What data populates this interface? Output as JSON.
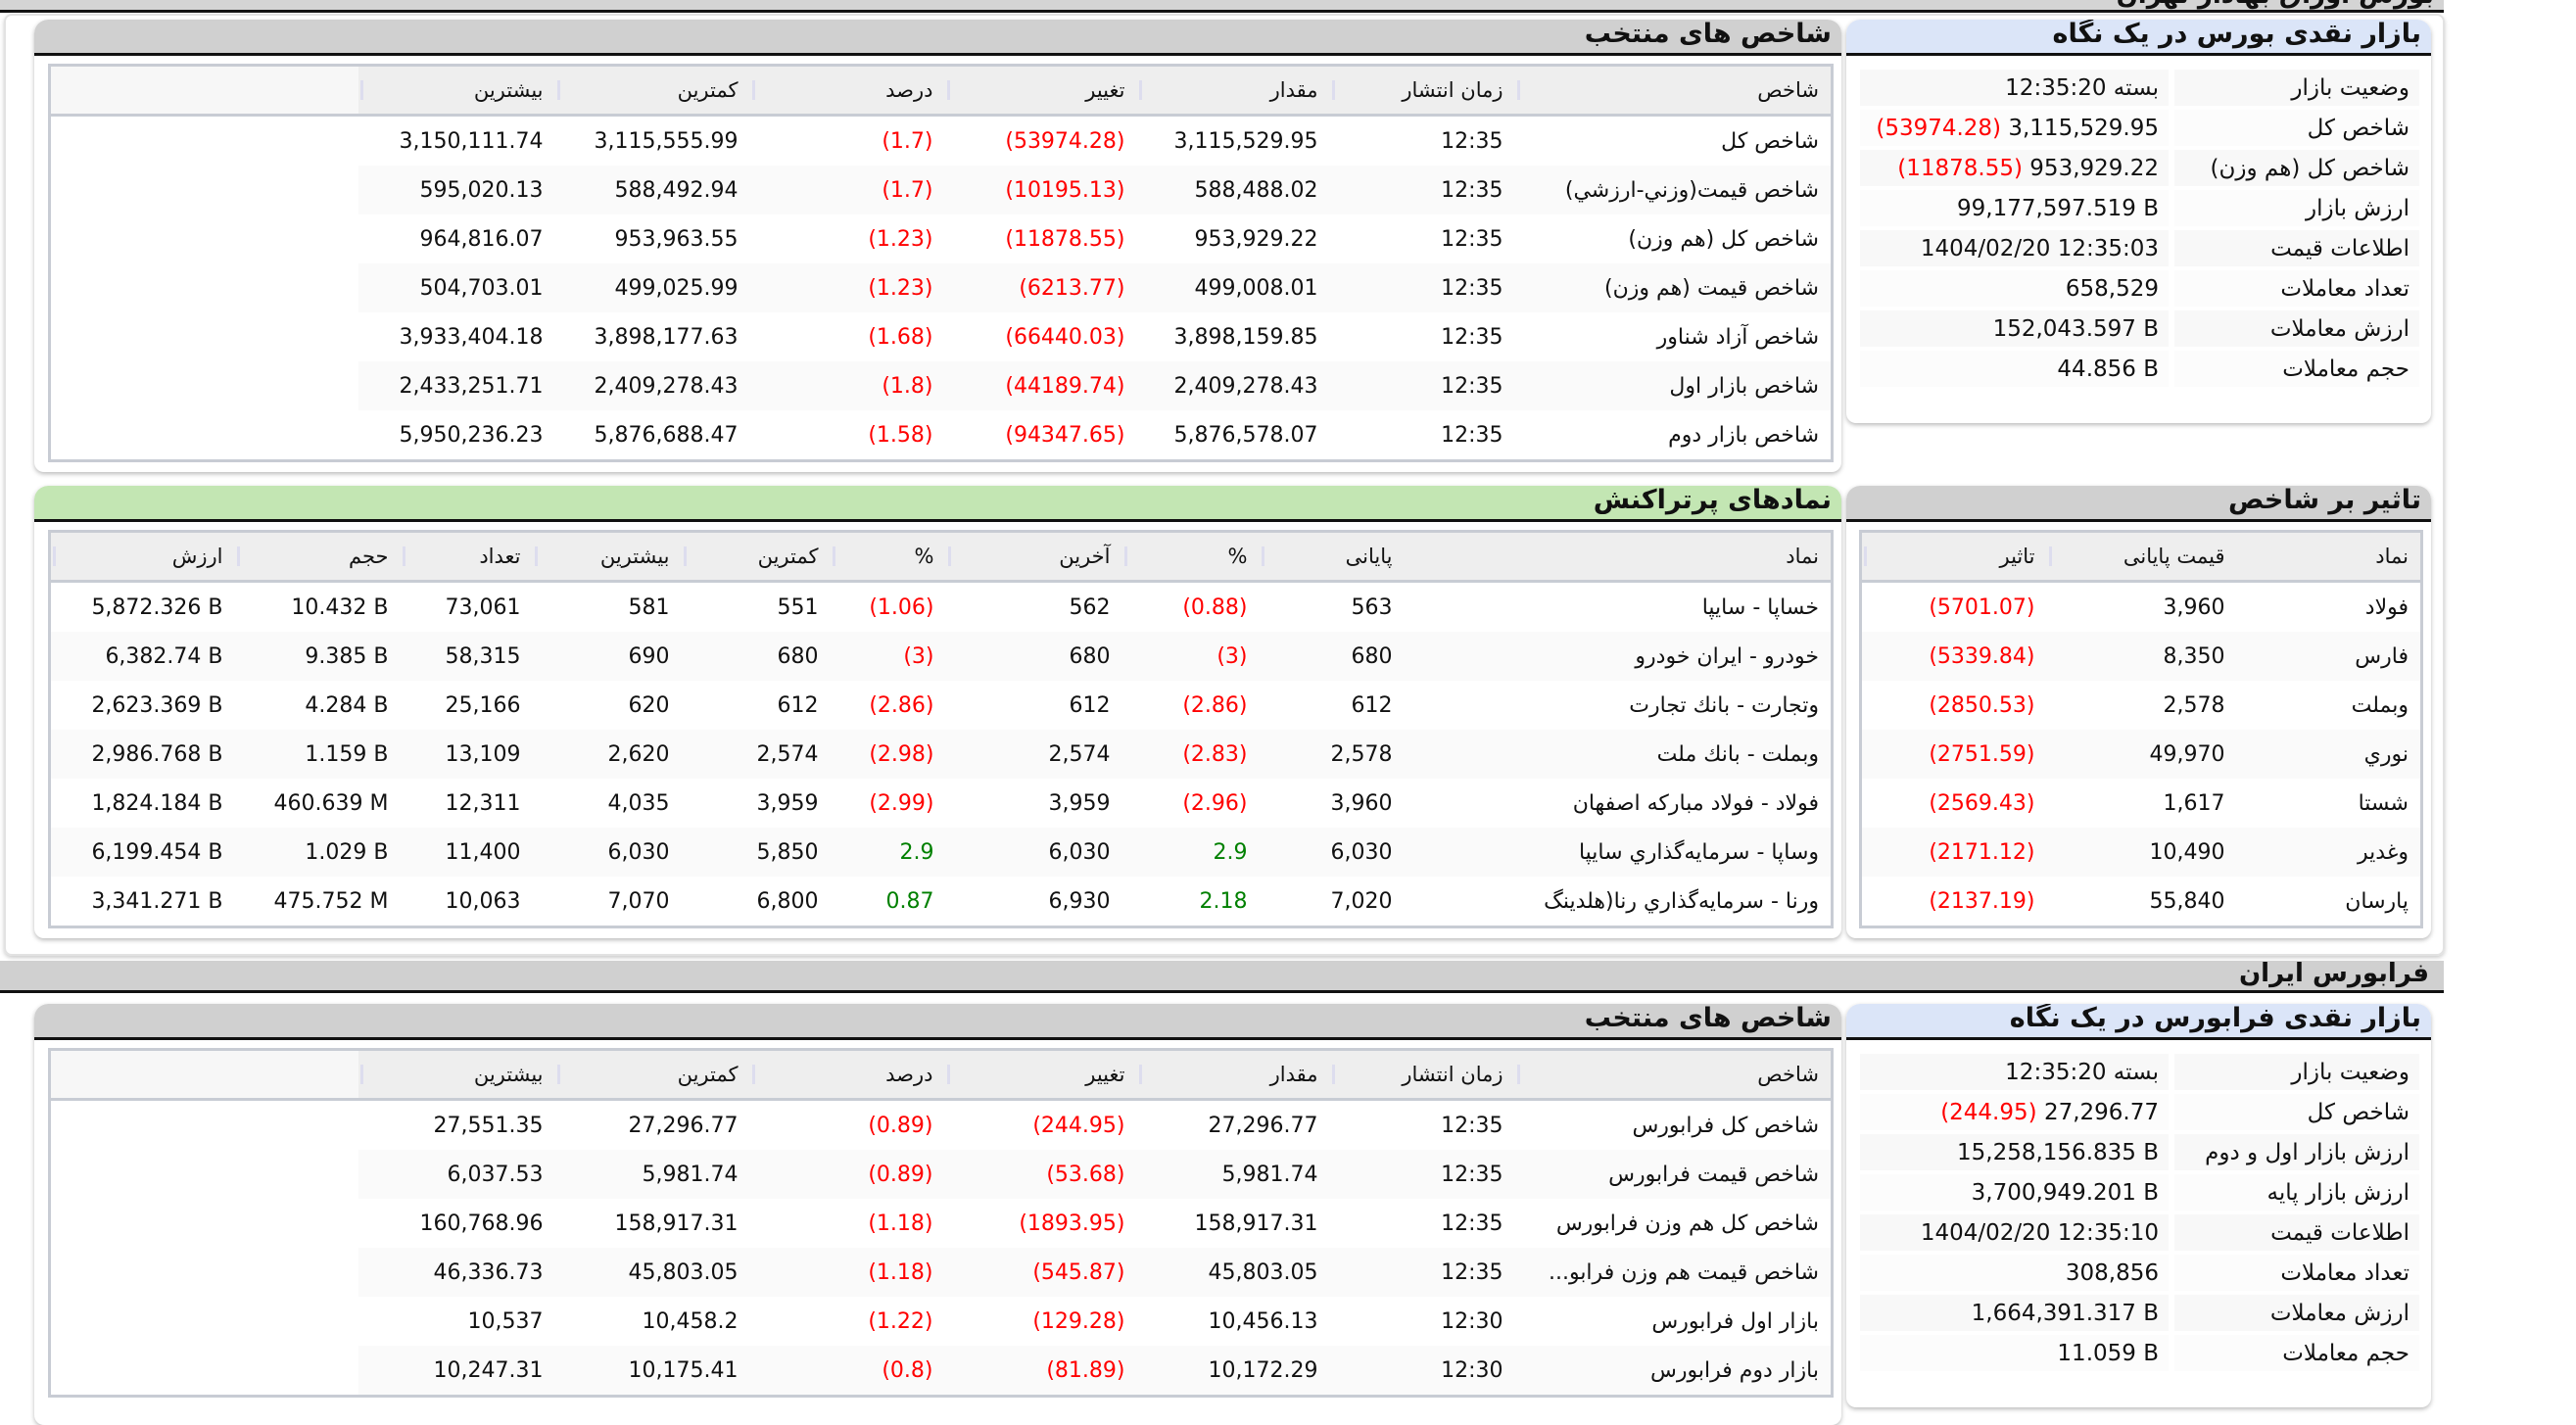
{
  "page_title": "بورس اوراق بهادار تهران",
  "colors": {
    "negative": "#ff0000",
    "positive": "#008000",
    "blue_header": "#dbe5f8",
    "green_header": "#c3e6b3",
    "gray_header": "#d0d0d0"
  },
  "tse_glance": {
    "title": "بازار نقدی بورس در یک نگاه",
    "rows": [
      {
        "label": "وضعیت بازار",
        "value": "بسته 12:35:20"
      },
      {
        "label": "شاخص کل",
        "value": "3,115,529.95",
        "change": "(53974.28)"
      },
      {
        "label": "شاخص کل (هم وزن)",
        "value": "953,929.22",
        "change": "(11878.55)"
      },
      {
        "label": "ارزش بازار",
        "value": "99,177,597.519 B"
      },
      {
        "label": "اطلاعات قیمت",
        "value": "1404/02/20 12:35:03"
      },
      {
        "label": "تعداد معاملات",
        "value": "658,529"
      },
      {
        "label": "ارزش معاملات",
        "value": "152,043.597 B"
      },
      {
        "label": "حجم معاملات",
        "value": "44.856 B"
      }
    ]
  },
  "tse_indices": {
    "title": "شاخص های منتخب",
    "columns": [
      "شاخص",
      "زمان انتشار",
      "مقدار",
      "تغییر",
      "درصد",
      "کمترین",
      "بیشترین"
    ],
    "rows": [
      [
        "شاخص کل",
        "12:35",
        "3,115,529.95",
        "(53974.28)",
        "(1.7)",
        "3,115,555.99",
        "3,150,111.74"
      ],
      [
        "شاخص قيمت(وزني-ارزشي)",
        "12:35",
        "588,488.02",
        "(10195.13)",
        "(1.7)",
        "588,492.94",
        "595,020.13"
      ],
      [
        "شاخص کل (هم وزن)",
        "12:35",
        "953,929.22",
        "(11878.55)",
        "(1.23)",
        "953,963.55",
        "964,816.07"
      ],
      [
        "شاخص قیمت (هم وزن)",
        "12:35",
        "499,008.01",
        "(6213.77)",
        "(1.23)",
        "499,025.99",
        "504,703.01"
      ],
      [
        "شاخص آزاد شناور",
        "12:35",
        "3,898,159.85",
        "(66440.03)",
        "(1.68)",
        "3,898,177.63",
        "3,933,404.18"
      ],
      [
        "شاخص بازار اول",
        "12:35",
        "2,409,278.43",
        "(44189.74)",
        "(1.8)",
        "2,409,278.43",
        "2,433,251.71"
      ],
      [
        "شاخص بازار دوم",
        "12:35",
        "5,876,578.07",
        "(94347.65)",
        "(1.58)",
        "5,876,688.47",
        "5,950,236.23"
      ]
    ]
  },
  "impact": {
    "title": "تاثیر بر شاخص",
    "columns": [
      "نماد",
      "قیمت پایانی",
      "تاثیر"
    ],
    "rows": [
      [
        "فولاد",
        "3,960",
        "(5701.07)"
      ],
      [
        "فارس",
        "8,350",
        "(5339.84)"
      ],
      [
        "وبملت",
        "2,578",
        "(2850.53)"
      ],
      [
        "نوري",
        "49,970",
        "(2751.59)"
      ],
      [
        "شستا",
        "1,617",
        "(2569.43)"
      ],
      [
        "وغدير",
        "10,490",
        "(2171.12)"
      ],
      [
        "پارسان",
        "55,840",
        "(2137.19)"
      ]
    ]
  },
  "busiest": {
    "title": "نمادهای پرتراکنش",
    "columns": [
      "نماد",
      "پایانی",
      "%",
      "آخرین",
      "%",
      "کمترین",
      "بیشترین",
      "تعداد",
      "حجم",
      "ارزش"
    ],
    "rows": [
      [
        "خساپا - سايپا",
        "563",
        "(0.88)",
        "562",
        "(1.06)",
        "551",
        "581",
        "73,061",
        "10.432 B",
        "5,872.326 B"
      ],
      [
        "خودرو - ايران‌ خودرو",
        "680",
        "(3)",
        "680",
        "(3)",
        "680",
        "690",
        "58,315",
        "9.385 B",
        "6,382.74 B"
      ],
      [
        "وتجارت - بانك تجارت",
        "612",
        "(2.86)",
        "612",
        "(2.86)",
        "612",
        "620",
        "25,166",
        "4.284 B",
        "2,623.369 B"
      ],
      [
        "وبملت - بانك ملت",
        "2,578",
        "(2.83)",
        "2,574",
        "(2.98)",
        "2,574",
        "2,620",
        "13,109",
        "1.159 B",
        "2,986.768 B"
      ],
      [
        "فولاد - فولاد مباركه اصفهان",
        "3,960",
        "(2.96)",
        "3,959",
        "(2.99)",
        "3,959",
        "4,035",
        "12,311",
        "460.639 M",
        "1,824.184 B"
      ],
      [
        "وساپا - سرمايه‌گذاري سايپا",
        "6,030",
        "2.9",
        "6,030",
        "2.9",
        "5,850",
        "6,030",
        "11,400",
        "1.029 B",
        "6,199.454 B"
      ],
      [
        "ورنا - سرمايه‌گذاري رنا(هلدينگ",
        "7,020",
        "2.18",
        "6,930",
        "0.87",
        "6,800",
        "7,070",
        "10,063",
        "475.752 M",
        "3,341.271 B"
      ]
    ]
  },
  "ifb_section_title": "فرابورس ایران",
  "ifb_glance": {
    "title": "بازار نقدی فرابورس در یک نگاه",
    "rows": [
      {
        "label": "وضعیت بازار",
        "value": "بسته 12:35:20"
      },
      {
        "label": "شاخص کل",
        "value": "27,296.77",
        "change": "(244.95)"
      },
      {
        "label": "ارزش بازار اول و دوم",
        "value": "15,258,156.835 B"
      },
      {
        "label": "ارزش بازار پایه",
        "value": "3,700,949.201 B"
      },
      {
        "label": "اطلاعات قیمت",
        "value": "1404/02/20 12:35:10"
      },
      {
        "label": "تعداد معاملات",
        "value": "308,856"
      },
      {
        "label": "ارزش معاملات",
        "value": "1,664,391.317 B"
      },
      {
        "label": "حجم معاملات",
        "value": "11.059 B"
      }
    ]
  },
  "ifb_indices": {
    "title": "شاخص های منتخب",
    "columns": [
      "شاخص",
      "زمان انتشار",
      "مقدار",
      "تغییر",
      "درصد",
      "کمترین",
      "بیشترین"
    ],
    "rows": [
      [
        "شاخص کل فرابورس",
        "12:35",
        "27,296.77",
        "(244.95)",
        "(0.89)",
        "27,296.77",
        "27,551.35"
      ],
      [
        "شاخص قیمت فرابورس",
        "12:35",
        "5,981.74",
        "(53.68)",
        "(0.89)",
        "5,981.74",
        "6,037.53"
      ],
      [
        "شاخص کل هم وزن فرابورس",
        "12:35",
        "158,917.31",
        "(1893.95)",
        "(1.18)",
        "158,917.31",
        "160,768.96"
      ],
      [
        "شاخص قیمت هم وزن فرابو...",
        "12:35",
        "45,803.05",
        "(545.87)",
        "(1.18)",
        "45,803.05",
        "46,336.73"
      ],
      [
        "بازار اول فرابورس",
        "12:30",
        "10,456.13",
        "(129.28)",
        "(1.22)",
        "10,458.2",
        "10,537"
      ],
      [
        "بازار دوم فرابورس",
        "12:30",
        "10,172.29",
        "(81.89)",
        "(0.8)",
        "10,175.41",
        "10,247.31"
      ]
    ]
  }
}
